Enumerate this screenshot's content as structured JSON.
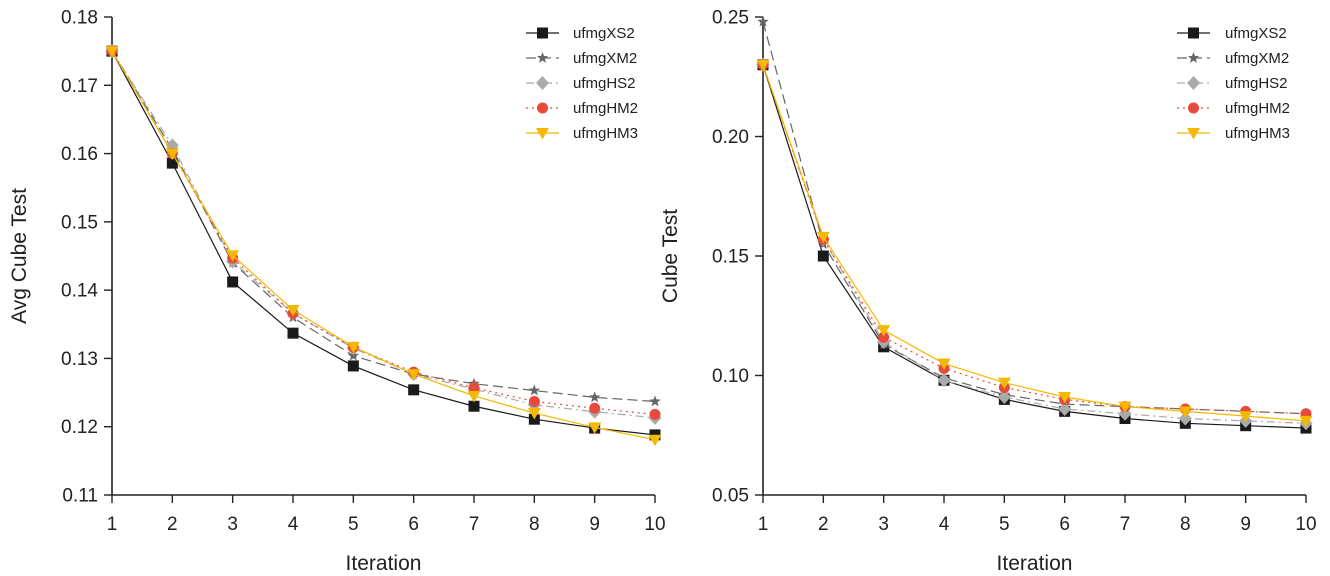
{
  "chart_data": [
    {
      "type": "line",
      "title": "",
      "xlabel": "Iteration",
      "ylabel": "Avg Cube Test",
      "x": [
        1,
        2,
        3,
        4,
        5,
        6,
        7,
        8,
        9,
        10
      ],
      "xlim": [
        1,
        10
      ],
      "ylim": [
        0.11,
        0.18
      ],
      "xticks": [
        "1",
        "2",
        "3",
        "4",
        "5",
        "6",
        "7",
        "8",
        "9",
        "10"
      ],
      "yticks": [
        "0.11",
        "0.12",
        "0.13",
        "0.14",
        "0.15",
        "0.16",
        "0.17",
        "0.18"
      ],
      "grid": false,
      "legend_position": "top-right",
      "series": [
        {
          "name": "ufmgXS2",
          "color": "#1a1a1a",
          "marker": "square",
          "dash": "solid",
          "values": [
            0.175,
            0.1586,
            0.1412,
            0.1337,
            0.1289,
            0.1254,
            0.123,
            0.1211,
            0.1198,
            0.1188
          ]
        },
        {
          "name": "ufmgXM2",
          "color": "#666666",
          "marker": "star",
          "dash": "dashed",
          "values": [
            0.175,
            0.1606,
            0.144,
            0.136,
            0.1304,
            0.1277,
            0.1263,
            0.1253,
            0.1243,
            0.1237
          ]
        },
        {
          "name": "ufmgHS2",
          "color": "#aaaaaa",
          "marker": "diamond",
          "dash": "dashdot",
          "values": [
            0.175,
            0.1612,
            0.1442,
            0.1366,
            0.1315,
            0.1277,
            0.1255,
            0.1232,
            0.1222,
            0.1213
          ]
        },
        {
          "name": "ufmgHM2",
          "color": "#e8493b",
          "marker": "circle",
          "dash": "dotted",
          "values": [
            0.175,
            0.16,
            0.1447,
            0.1366,
            0.1316,
            0.128,
            0.1257,
            0.1237,
            0.1227,
            0.1218
          ]
        },
        {
          "name": "ufmgHM3",
          "color": "#f5b800",
          "marker": "triangle-down",
          "dash": "solid",
          "values": [
            0.175,
            0.16,
            0.1451,
            0.1371,
            0.1317,
            0.1277,
            0.1245,
            0.122,
            0.1199,
            0.1181
          ]
        }
      ]
    },
    {
      "type": "line",
      "title": "",
      "xlabel": "Iteration",
      "ylabel": "Cube Test",
      "x": [
        1,
        2,
        3,
        4,
        5,
        6,
        7,
        8,
        9,
        10
      ],
      "xlim": [
        1,
        10
      ],
      "ylim": [
        0.05,
        0.25
      ],
      "xticks": [
        "1",
        "2",
        "3",
        "4",
        "5",
        "6",
        "7",
        "8",
        "9",
        "10"
      ],
      "yticks": [
        "0.05",
        "0.10",
        "0.15",
        "0.20",
        "0.25"
      ],
      "grid": false,
      "legend_position": "top-right",
      "series": [
        {
          "name": "ufmgXS2",
          "color": "#1a1a1a",
          "marker": "square",
          "dash": "solid",
          "values": [
            0.23,
            0.15,
            0.112,
            0.098,
            0.09,
            0.085,
            0.082,
            0.08,
            0.079,
            0.078
          ]
        },
        {
          "name": "ufmgXM2",
          "color": "#666666",
          "marker": "star",
          "dash": "dashed",
          "values": [
            0.248,
            0.155,
            0.113,
            0.099,
            0.092,
            0.088,
            0.087,
            0.086,
            0.085,
            0.084
          ]
        },
        {
          "name": "ufmgHS2",
          "color": "#aaaaaa",
          "marker": "diamond",
          "dash": "dashdot",
          "values": [
            0.23,
            0.157,
            0.114,
            0.098,
            0.091,
            0.086,
            0.084,
            0.082,
            0.081,
            0.08
          ]
        },
        {
          "name": "ufmgHM2",
          "color": "#e8493b",
          "marker": "circle",
          "dash": "dotted",
          "values": [
            0.23,
            0.157,
            0.116,
            0.103,
            0.095,
            0.09,
            0.087,
            0.086,
            0.085,
            0.084
          ]
        },
        {
          "name": "ufmgHM3",
          "color": "#f5b800",
          "marker": "triangle-down",
          "dash": "solid",
          "values": [
            0.23,
            0.158,
            0.119,
            0.105,
            0.097,
            0.091,
            0.087,
            0.085,
            0.083,
            0.081
          ]
        }
      ]
    }
  ]
}
